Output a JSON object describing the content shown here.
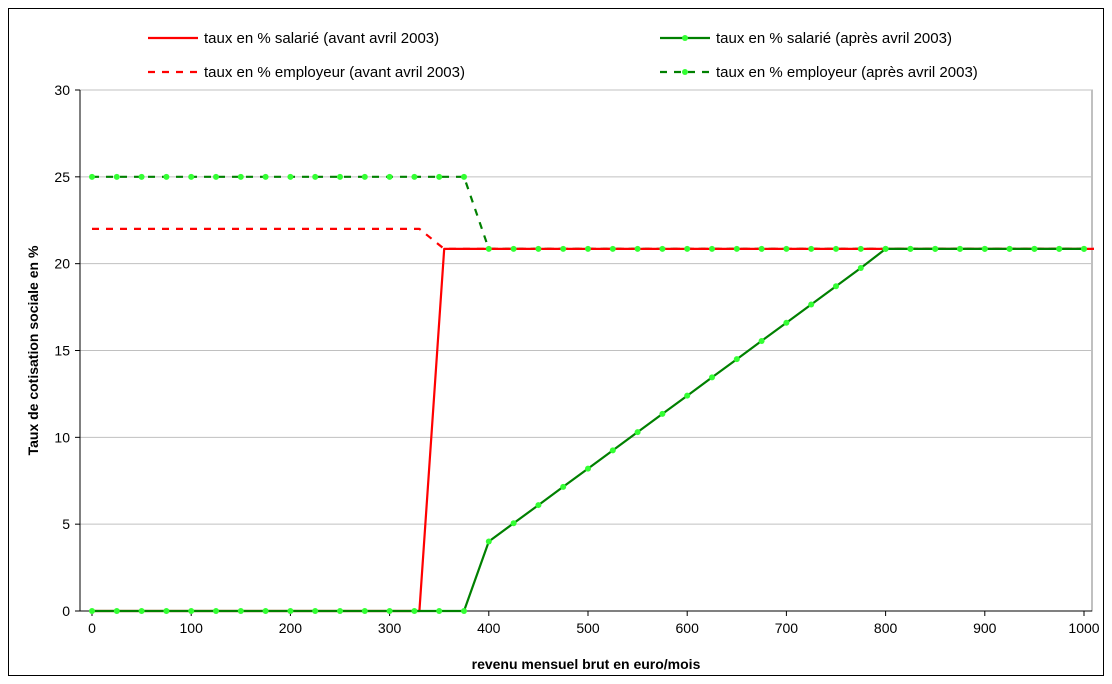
{
  "chart_data": {
    "type": "line",
    "title": "",
    "xlabel": "revenu mensuel brut en euro/mois",
    "ylabel": "Taux de cotisation sociale en %",
    "xlim": [
      0,
      1000
    ],
    "ylim": [
      0,
      30
    ],
    "xticks": [
      0,
      100,
      200,
      300,
      400,
      500,
      600,
      700,
      800,
      900,
      1000
    ],
    "yticks": [
      0,
      5,
      10,
      15,
      20,
      25,
      30
    ],
    "grid": "horizontal",
    "legend_placement": "top",
    "series": [
      {
        "name": "taux en % salarié (avant avril 2003)",
        "color": "#ff0000",
        "style": "solid",
        "marker": "none",
        "x": [
          0,
          330,
          355,
          1010
        ],
        "y": [
          0,
          0,
          20.85,
          20.85
        ]
      },
      {
        "name": "taux en % employeur (avant avril 2003)",
        "color": "#ff0000",
        "style": "dashed",
        "marker": "none",
        "x": [
          0,
          330,
          355,
          1010
        ],
        "y": [
          22,
          22,
          20.85,
          20.85
        ]
      },
      {
        "name": "taux en % salarié (après avril 2003)",
        "color": "#008000",
        "style": "solid",
        "marker": "dot",
        "marker_color": "#33ff33",
        "x": [
          0,
          25,
          50,
          75,
          100,
          125,
          150,
          175,
          200,
          225,
          250,
          275,
          300,
          325,
          350,
          375,
          400,
          425,
          450,
          475,
          500,
          525,
          550,
          575,
          600,
          625,
          650,
          675,
          700,
          725,
          750,
          775,
          800,
          825,
          850,
          875,
          900,
          925,
          950,
          975,
          1000
        ],
        "y": [
          0,
          0,
          0,
          0,
          0,
          0,
          0,
          0,
          0,
          0,
          0,
          0,
          0,
          0,
          0,
          0,
          4.0,
          5.05,
          6.1,
          7.15,
          8.2,
          9.25,
          10.3,
          11.35,
          12.4,
          13.45,
          14.5,
          15.55,
          16.6,
          17.65,
          18.7,
          19.75,
          20.85,
          20.85,
          20.85,
          20.85,
          20.85,
          20.85,
          20.85,
          20.85,
          20.85
        ]
      },
      {
        "name": "taux en % employeur (après avril 2003)",
        "color": "#008000",
        "style": "dashed",
        "marker": "dot",
        "marker_color": "#33ff33",
        "x": [
          0,
          25,
          50,
          75,
          100,
          125,
          150,
          175,
          200,
          225,
          250,
          275,
          300,
          325,
          350,
          375,
          400,
          425,
          450,
          475,
          500,
          525,
          550,
          575,
          600,
          625,
          650,
          675,
          700,
          725,
          750,
          775,
          800,
          825,
          850,
          875,
          900,
          925,
          950,
          975,
          1000
        ],
        "y": [
          25,
          25,
          25,
          25,
          25,
          25,
          25,
          25,
          25,
          25,
          25,
          25,
          25,
          25,
          25,
          25,
          20.85,
          20.85,
          20.85,
          20.85,
          20.85,
          20.85,
          20.85,
          20.85,
          20.85,
          20.85,
          20.85,
          20.85,
          20.85,
          20.85,
          20.85,
          20.85,
          20.85,
          20.85,
          20.85,
          20.85,
          20.85,
          20.85,
          20.85,
          20.85,
          20.85
        ]
      }
    ]
  }
}
